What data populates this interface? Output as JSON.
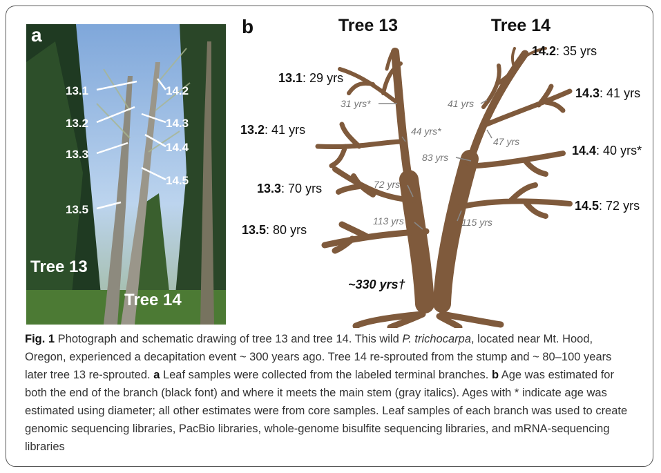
{
  "panel_a": {
    "label": "a",
    "branch_labels": [
      "13.1",
      "13.2",
      "13.3",
      "13.5",
      "14.2",
      "14.3",
      "14.4",
      "14.5"
    ],
    "tree_labels": [
      "Tree 13",
      "Tree 14"
    ]
  },
  "panel_b": {
    "label": "b",
    "tree_titles": [
      "Tree 13",
      "Tree 14"
    ],
    "branch_ends": [
      {
        "branch": "13.1",
        "text": ": 29 yrs"
      },
      {
        "branch": "13.2",
        "text": ": 41 yrs"
      },
      {
        "branch": "13.3",
        "text": ": 70 yrs"
      },
      {
        "branch": "13.5",
        "text": ": 80 yrs"
      },
      {
        "branch": "14.2",
        "text": ": 35 yrs"
      },
      {
        "branch": "14.3",
        "text": ": 41 yrs"
      },
      {
        "branch": "14.4",
        "text": ": 40 yrs*"
      },
      {
        "branch": "14.5",
        "text": ": 72 yrs"
      }
    ],
    "junction_ages": [
      "31 yrs*",
      "44 yrs*",
      "72 yrs",
      "113 yrs",
      "41 yrs",
      "47 yrs",
      "83 yrs",
      "115 yrs"
    ],
    "stump_age": "~330 yrs†"
  },
  "caption": {
    "segments": [
      {
        "style": "bold",
        "text": "Fig. 1"
      },
      {
        "style": "normal",
        "text": " Photograph and schematic drawing of tree 13 and tree 14. This wild "
      },
      {
        "style": "italic",
        "text": "P. trichocarpa"
      },
      {
        "style": "normal",
        "text": ", located near Mt. Hood, Oregon, experienced a decapitation event ~ 300 years ago. Tree 14 re-sprouted from the stump and ~ 80–100 years later tree 13 re-sprouted. "
      },
      {
        "style": "bold",
        "text": "a"
      },
      {
        "style": "normal",
        "text": " Leaf samples were collected from the labeled terminal branches. "
      },
      {
        "style": "bold",
        "text": "b"
      },
      {
        "style": "normal",
        "text": " Age was estimated for both the end of the branch (black font) and where it meets the main stem (gray italics). Ages with * indicate age was estimated using diameter; all other estimates were from core samples. Leaf samples of each branch was used to create genomic sequencing libraries, PacBio libraries, whole-genome bisulfite sequencing libraries, and mRNA-sequencing libraries"
      }
    ]
  }
}
